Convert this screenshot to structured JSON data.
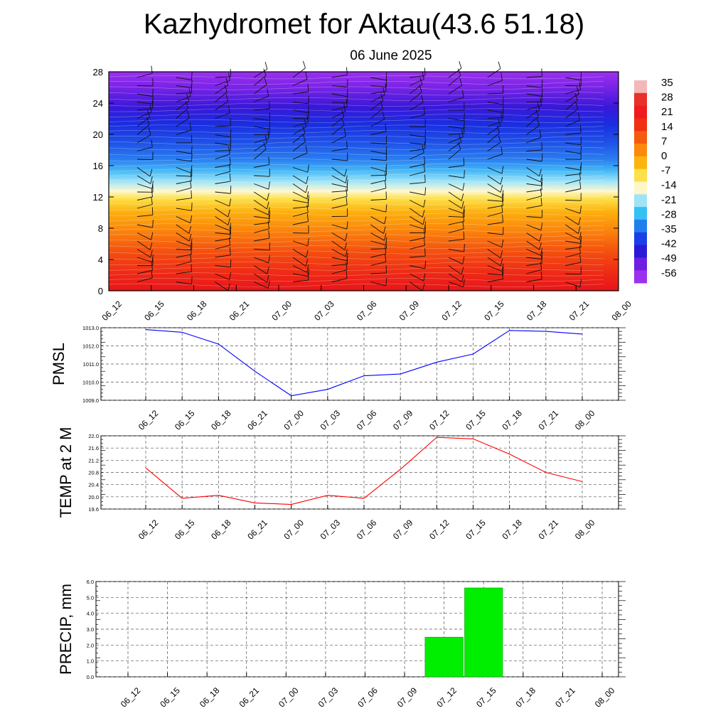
{
  "title": "Kazhydromet for Aktau(43.6 51.18)",
  "subtitle": "06 June 2025",
  "colors": {
    "pmsl_line": "#0000ff",
    "temp_line": "#ff0000",
    "precip_bar": "#00ee00",
    "grid": "#000000"
  },
  "chart_data": [
    {
      "type": "heatmap",
      "name": "cross-section",
      "x_labels": [
        "06_12",
        "06_15",
        "06_18",
        "06_21",
        "07_00",
        "07_03",
        "07_06",
        "07_09",
        "07_12",
        "07_15",
        "07_18",
        "07_21",
        "08_00"
      ],
      "y_ticks": [
        "0",
        "4",
        "8",
        "12",
        "16",
        "20",
        "24",
        "28"
      ],
      "ylim": [
        0,
        28
      ],
      "colorbar_labels": [
        "35",
        "28",
        "21",
        "14",
        "7",
        "0",
        "-7",
        "-14",
        "-21",
        "-28",
        "-35",
        "-42",
        "-49",
        "-56"
      ],
      "colorbar_colors": [
        "#f4b8b8",
        "#e9302a",
        "#ee1c1c",
        "#f03010",
        "#f65a0e",
        "#fb8a0c",
        "#fdb40e",
        "#fde04a",
        "#fff6c8",
        "#9fe3f7",
        "#36c0f4",
        "#1f7fee",
        "#1a3fe6",
        "#2a1ad8",
        "#6e1fe0",
        "#9b30f0"
      ],
      "annotations": "wind barbs"
    },
    {
      "type": "line",
      "ylabel": "PMSL",
      "x": [
        "06_12",
        "06_15",
        "06_18",
        "06_21",
        "07_00",
        "07_03",
        "07_06",
        "07_09",
        "07_12",
        "07_15",
        "07_18",
        "07_21",
        "08_00"
      ],
      "values": [
        1012.9,
        1012.75,
        1012.1,
        1010.6,
        1009.25,
        1009.6,
        1010.35,
        1010.45,
        1011.1,
        1011.55,
        1012.85,
        1012.8,
        1012.65
      ],
      "ylim": [
        1009.0,
        1013.0
      ],
      "y_ticks": [
        "1009.0",
        "1010.0",
        "1011.0",
        "1012.0",
        "1013.0"
      ],
      "grid": true
    },
    {
      "type": "line",
      "ylabel": "TEMP at 2 M",
      "x": [
        "06_12",
        "06_15",
        "06_18",
        "06_21",
        "07_00",
        "07_03",
        "07_06",
        "07_09",
        "07_12",
        "07_15",
        "07_18",
        "07_21",
        "08_00"
      ],
      "values": [
        20.95,
        19.95,
        20.05,
        19.8,
        19.75,
        20.05,
        19.95,
        20.9,
        21.95,
        21.9,
        21.4,
        20.8,
        20.5
      ],
      "ylim": [
        19.6,
        22.0
      ],
      "y_ticks": [
        "19.6",
        "20.0",
        "20.4",
        "20.8",
        "21.2",
        "21.6",
        "22.0"
      ],
      "grid": true
    },
    {
      "type": "bar",
      "ylabel": "PRECIP, mm",
      "categories": [
        "06_12",
        "06_15",
        "06_18",
        "06_21",
        "07_00",
        "07_03",
        "07_06",
        "07_09",
        "07_12",
        "07_15",
        "07_18",
        "07_21",
        "08_00"
      ],
      "values": [
        0,
        0,
        0,
        0,
        0,
        0,
        0,
        0,
        2.5,
        5.6,
        0,
        0,
        0
      ],
      "ylim": [
        0.0,
        6.0
      ],
      "y_ticks": [
        "0.0",
        "1.0",
        "2.0",
        "3.0",
        "4.0",
        "5.0",
        "6.0"
      ],
      "grid": true
    }
  ]
}
